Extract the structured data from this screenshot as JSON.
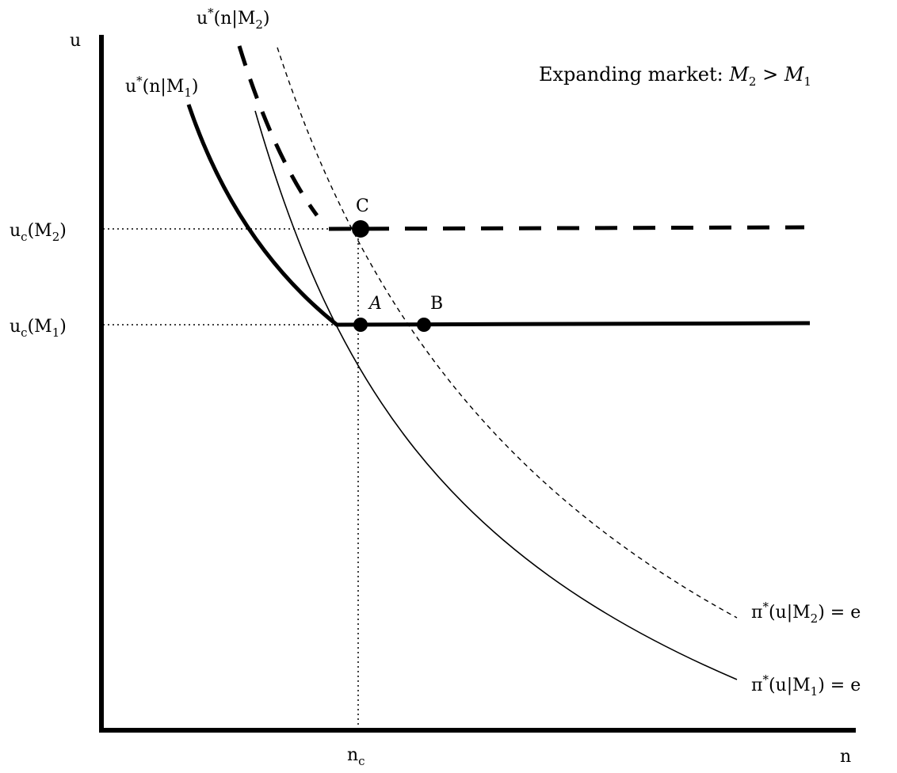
{
  "title": {
    "text": "Expanding market: ",
    "m2": "M",
    "m2_sub": "2",
    "gt": " > ",
    "m1": "M",
    "m1_sub": "1"
  },
  "axes": {
    "y_label": "u",
    "x_label": "n"
  },
  "ticks": {
    "uc_m2": {
      "base": "u",
      "sub": "c",
      "rest": "(M",
      "rest_sub": "2",
      "close": ")"
    },
    "uc_m1": {
      "base": "u",
      "sub": "c",
      "rest": "(M",
      "rest_sub": "1",
      "close": ")"
    },
    "nc": {
      "base": "n",
      "sub": "c"
    }
  },
  "curves": {
    "ustar_m1": {
      "a": "u",
      "sup": "*",
      "b": "(n|M",
      "sub": "1",
      "c": ")"
    },
    "ustar_m2": {
      "a": "u",
      "sup": "*",
      "b": "(n|M",
      "sub": "2",
      "c": ")"
    },
    "pi_m1": {
      "a": "π",
      "sup": "*",
      "b": "(u|M",
      "sub": "1",
      "c": ") = e"
    },
    "pi_m2": {
      "a": "π",
      "sup": "*",
      "b": "(u|M",
      "sub": "2",
      "c": ") = e"
    }
  },
  "points": {
    "A": "A",
    "B": "B",
    "C": "C"
  },
  "colors": {
    "ink": "#000000",
    "background": "#ffffff"
  }
}
